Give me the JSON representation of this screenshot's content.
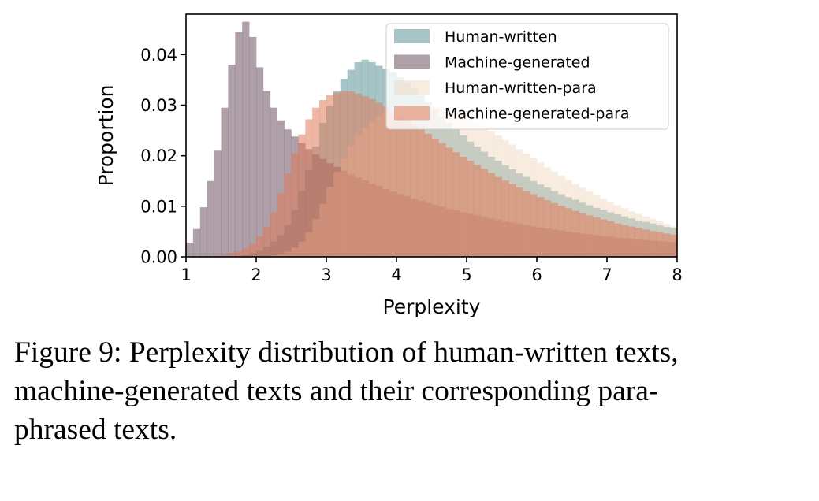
{
  "chart_data": {
    "type": "histogram",
    "xlabel": "Perplexity",
    "ylabel": "Proportion",
    "xlim": [
      1,
      8
    ],
    "ylim": [
      0,
      0.048
    ],
    "x_ticks": [
      "1",
      "2",
      "3",
      "4",
      "5",
      "6",
      "7",
      "8"
    ],
    "y_ticks": [
      "0.00",
      "0.01",
      "0.02",
      "0.03",
      "0.04"
    ],
    "grid": false,
    "legend_position": "top-right",
    "bin_start": 1.0,
    "bin_width": 0.1,
    "series": [
      {
        "name": "Human-written",
        "color": "#5f9598",
        "values": [
          0,
          0,
          0,
          0,
          0,
          0,
          0.0001,
          0.0002,
          0.0004,
          0.0008,
          0.0012,
          0.002,
          0.003,
          0.0043,
          0.0063,
          0.0093,
          0.013,
          0.0172,
          0.0218,
          0.0265,
          0.0298,
          0.0328,
          0.0352,
          0.037,
          0.0385,
          0.039,
          0.0385,
          0.0378,
          0.0372,
          0.0365,
          0.0355,
          0.0345,
          0.0333,
          0.032,
          0.0305,
          0.0292,
          0.0278,
          0.0265,
          0.0252,
          0.024,
          0.0228,
          0.0218,
          0.0208,
          0.0198,
          0.019,
          0.0181,
          0.0173,
          0.0165,
          0.0158,
          0.015,
          0.0143,
          0.0137,
          0.013,
          0.0124,
          0.0118,
          0.0113,
          0.0107,
          0.0102,
          0.0097,
          0.0093,
          0.0088,
          0.0084,
          0.008,
          0.0076,
          0.0072,
          0.0069,
          0.0066,
          0.0062,
          0.0059,
          0.0057
        ]
      },
      {
        "name": "Machine-generated",
        "color": "#6b5060",
        "values": [
          0.0028,
          0.0055,
          0.0098,
          0.015,
          0.021,
          0.0295,
          0.038,
          0.0445,
          0.0465,
          0.0435,
          0.0375,
          0.0328,
          0.0295,
          0.027,
          0.0252,
          0.0238,
          0.0225,
          0.0213,
          0.0203,
          0.0194,
          0.0185,
          0.0178,
          0.017,
          0.0163,
          0.0157,
          0.0151,
          0.0145,
          0.014,
          0.0134,
          0.0129,
          0.0124,
          0.012,
          0.0115,
          0.0111,
          0.0107,
          0.0103,
          0.0099,
          0.0095,
          0.0092,
          0.0088,
          0.0085,
          0.0082,
          0.0079,
          0.0076,
          0.0073,
          0.007,
          0.0068,
          0.0065,
          0.0063,
          0.006,
          0.0058,
          0.0056,
          0.0054,
          0.0052,
          0.005,
          0.0048,
          0.0046,
          0.0045,
          0.0043,
          0.0041,
          0.004,
          0.0038,
          0.0037,
          0.0036,
          0.0034,
          0.0033,
          0.0032,
          0.0031,
          0.003,
          0.0029
        ]
      },
      {
        "name": "Human-written-para",
        "color": "#f0d5bd",
        "values": [
          0,
          0,
          0,
          0,
          0,
          0,
          0,
          0,
          0,
          0,
          0,
          0.0001,
          0.0003,
          0.0006,
          0.001,
          0.0018,
          0.003,
          0.0048,
          0.0075,
          0.0105,
          0.0138,
          0.0168,
          0.0195,
          0.022,
          0.024,
          0.0255,
          0.0268,
          0.0278,
          0.0286,
          0.0292,
          0.0296,
          0.03,
          0.0301,
          0.0302,
          0.0301,
          0.0298,
          0.0295,
          0.029,
          0.0285,
          0.0279,
          0.0272,
          0.0265,
          0.0257,
          0.0249,
          0.024,
          0.0231,
          0.0222,
          0.0213,
          0.0204,
          0.0195,
          0.0186,
          0.0177,
          0.0169,
          0.016,
          0.0152,
          0.0144,
          0.0137,
          0.0129,
          0.0122,
          0.0115,
          0.0109,
          0.0102,
          0.0096,
          0.009,
          0.0085,
          0.008,
          0.0075,
          0.007,
          0.0065,
          0.006
        ]
      },
      {
        "name": "Machine-generated-para",
        "color": "#e07a5a",
        "values": [
          0,
          0,
          0,
          0.0001,
          0.0002,
          0.0004,
          0.0007,
          0.0011,
          0.0017,
          0.0026,
          0.004,
          0.006,
          0.0088,
          0.0125,
          0.0165,
          0.0205,
          0.0242,
          0.0272,
          0.0295,
          0.031,
          0.032,
          0.0325,
          0.0328,
          0.0327,
          0.0323,
          0.0318,
          0.0312,
          0.0305,
          0.0297,
          0.0289,
          0.028,
          0.0271,
          0.0262,
          0.0252,
          0.0243,
          0.0234,
          0.0225,
          0.0216,
          0.0207,
          0.0198,
          0.019,
          0.0182,
          0.0174,
          0.0166,
          0.0158,
          0.0151,
          0.0144,
          0.0137,
          0.013,
          0.0124,
          0.0118,
          0.0112,
          0.0106,
          0.0101,
          0.0096,
          0.0091,
          0.0086,
          0.0082,
          0.0078,
          0.0074,
          0.007,
          0.0066,
          0.0063,
          0.006,
          0.0057,
          0.0054,
          0.0051,
          0.0049,
          0.0046,
          0.0044
        ]
      }
    ]
  },
  "caption": {
    "line1": "Figure 9: Perplexity distribution of human-written texts,",
    "line2": "machine-generated texts and their corresponding para-",
    "line3": "phrased texts."
  }
}
